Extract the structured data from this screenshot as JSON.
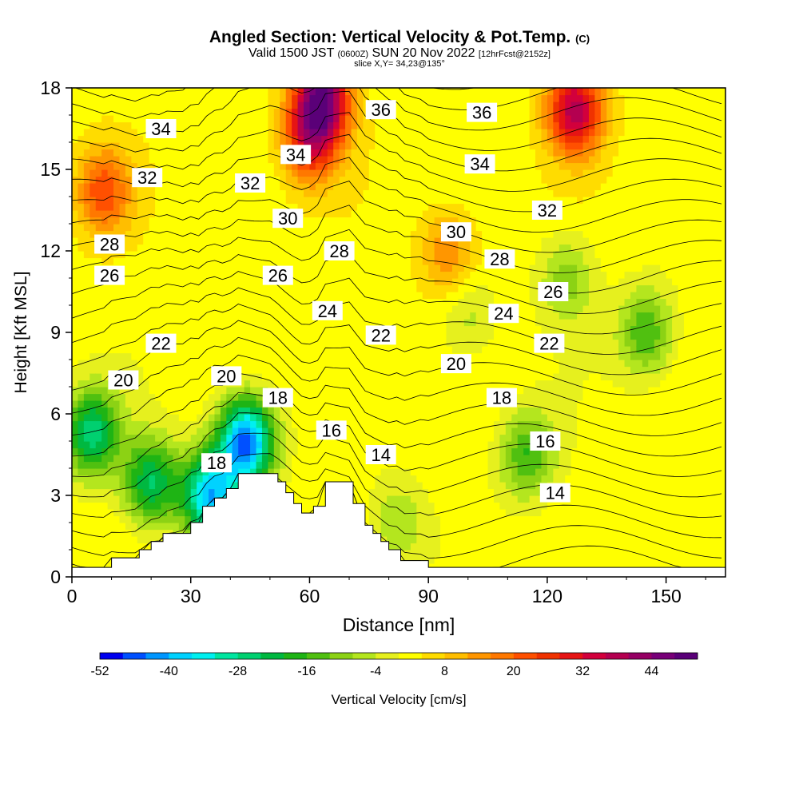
{
  "header": {
    "title_main": "Angled Section: Vertical Velocity & Pot.Temp.",
    "title_unit": "(C)",
    "valid_prefix": "Valid 1500 JST",
    "valid_z": "(0600Z)",
    "valid_date": "SUN 20 Nov 2022",
    "valid_fcst": "[12hrFcst@2152z]",
    "slice": "slice X,Y= 34,23@135°"
  },
  "colorbar": {
    "label": "Vertical Velocity [cm/s]",
    "tick_labels": [
      "-52",
      "-40",
      "-28",
      "-16",
      "-4",
      "8",
      "20",
      "32",
      "44"
    ],
    "colors": [
      "#0000f0",
      "#0050ff",
      "#0096ff",
      "#00d2ff",
      "#00f0f0",
      "#00e6a0",
      "#00d070",
      "#00b840",
      "#1eb414",
      "#50c010",
      "#8cd214",
      "#b4e61e",
      "#e6f01e",
      "#ffff00",
      "#ffdc00",
      "#ffbe00",
      "#ff9600",
      "#ff7800",
      "#ff5000",
      "#f03200",
      "#e61414",
      "#d2003c",
      "#b40050",
      "#960064",
      "#780078",
      "#5a0078"
    ]
  },
  "chart_data": {
    "type": "contour-cross-section",
    "xlabel": "Distance [nm]",
    "ylabel": "Height [Kft MSL]",
    "xlim": [
      0,
      165
    ],
    "ylim": [
      0,
      18
    ],
    "x_ticks": [
      0,
      30,
      60,
      90,
      120,
      150
    ],
    "y_ticks": [
      0,
      3,
      6,
      9,
      12,
      15,
      18
    ],
    "x_tick_labels": [
      "0",
      "30",
      "60",
      "90",
      "120",
      "150"
    ],
    "y_tick_labels": [
      "0",
      "3",
      "6",
      "9",
      "12",
      "15",
      "18"
    ],
    "fill_variable": "Vertical Velocity [cm/s]",
    "fill_range": [
      -52,
      48
    ],
    "fill_step": 4,
    "contour_variable": "Pot.Temp. (C)",
    "isotherm_range": [
      13,
      37
    ],
    "terrain": [
      [
        0,
        0.35
      ],
      [
        10,
        0.35
      ],
      [
        10,
        0.7
      ],
      [
        17,
        0.7
      ],
      [
        17,
        1.0
      ],
      [
        20,
        1.0
      ],
      [
        20,
        1.3
      ],
      [
        23,
        1.3
      ],
      [
        23,
        1.6
      ],
      [
        30,
        1.6
      ],
      [
        30,
        2.0
      ],
      [
        33,
        2.0
      ],
      [
        33,
        2.6
      ],
      [
        36,
        2.6
      ],
      [
        36,
        2.9
      ],
      [
        39,
        2.9
      ],
      [
        39,
        3.25
      ],
      [
        42,
        3.25
      ],
      [
        42,
        3.8
      ],
      [
        52,
        3.8
      ],
      [
        52,
        3.5
      ],
      [
        54,
        3.5
      ],
      [
        54,
        3.1
      ],
      [
        56,
        3.1
      ],
      [
        56,
        2.7
      ],
      [
        58,
        2.7
      ],
      [
        58,
        2.35
      ],
      [
        61,
        2.35
      ],
      [
        61,
        2.6
      ],
      [
        64,
        2.6
      ],
      [
        64,
        3.5
      ],
      [
        71,
        3.5
      ],
      [
        71,
        2.7
      ],
      [
        74,
        2.7
      ],
      [
        74,
        1.9
      ],
      [
        76,
        1.9
      ],
      [
        76,
        1.6
      ],
      [
        78,
        1.6
      ],
      [
        78,
        1.3
      ],
      [
        80,
        1.3
      ],
      [
        80,
        1.0
      ],
      [
        83,
        1.0
      ],
      [
        83,
        0.6
      ],
      [
        90,
        0.6
      ],
      [
        90,
        0.35
      ],
      [
        165,
        0.35
      ]
    ],
    "vv_features": [
      {
        "x": 5,
        "y": 5.3,
        "value": -28
      },
      {
        "x": 20,
        "y": 3.5,
        "value": -26
      },
      {
        "x": 44,
        "y": 5.0,
        "value": -48
      },
      {
        "x": 35,
        "y": 3.0,
        "value": -40
      },
      {
        "x": 63,
        "y": 17.6,
        "value": 44
      },
      {
        "x": 127,
        "y": 17.2,
        "value": 36
      },
      {
        "x": 8,
        "y": 14.2,
        "value": 20
      },
      {
        "x": 95,
        "y": 12.0,
        "value": 14
      },
      {
        "x": 125,
        "y": 11.0,
        "value": -12
      },
      {
        "x": 145,
        "y": 9.0,
        "value": -18
      },
      {
        "x": 115,
        "y": 4.5,
        "value": -18
      },
      {
        "x": 100,
        "y": 9.5,
        "value": -8
      },
      {
        "x": 82,
        "y": 2.0,
        "value": -10
      },
      {
        "x": 60,
        "y": 16.0,
        "value": 24
      }
    ],
    "contour_labels": [
      {
        "text": "34",
        "x": 22.5,
        "y": 16.5
      },
      {
        "text": "32",
        "x": 19.0,
        "y": 14.7
      },
      {
        "text": "28",
        "x": 9.5,
        "y": 12.25
      },
      {
        "text": "26",
        "x": 9.5,
        "y": 11.1
      },
      {
        "text": "22",
        "x": 22.5,
        "y": 8.6
      },
      {
        "text": "20",
        "x": 13.0,
        "y": 7.25
      },
      {
        "text": "36",
        "x": 78.0,
        "y": 17.2
      },
      {
        "text": "36",
        "x": 103.5,
        "y": 17.1
      },
      {
        "text": "34",
        "x": 56.5,
        "y": 15.55
      },
      {
        "text": "34",
        "x": 103.0,
        "y": 15.2
      },
      {
        "text": "32",
        "x": 45.0,
        "y": 14.5
      },
      {
        "text": "32",
        "x": 120.0,
        "y": 13.5
      },
      {
        "text": "30",
        "x": 54.5,
        "y": 13.2
      },
      {
        "text": "30",
        "x": 97.0,
        "y": 12.7
      },
      {
        "text": "28",
        "x": 67.5,
        "y": 12.0
      },
      {
        "text": "28",
        "x": 108.0,
        "y": 11.7
      },
      {
        "text": "26",
        "x": 52.0,
        "y": 11.1
      },
      {
        "text": "26",
        "x": 121.5,
        "y": 10.5
      },
      {
        "text": "24",
        "x": 64.5,
        "y": 9.8
      },
      {
        "text": "24",
        "x": 109.0,
        "y": 9.7
      },
      {
        "text": "22",
        "x": 78.0,
        "y": 8.9
      },
      {
        "text": "22",
        "x": 120.5,
        "y": 8.6
      },
      {
        "text": "20",
        "x": 39.0,
        "y": 7.4
      },
      {
        "text": "20",
        "x": 97.0,
        "y": 7.85
      },
      {
        "text": "18",
        "x": 52.0,
        "y": 6.6
      },
      {
        "text": "18",
        "x": 108.5,
        "y": 6.6
      },
      {
        "text": "18",
        "x": 36.5,
        "y": 4.2
      },
      {
        "text": "16",
        "x": 65.5,
        "y": 5.4
      },
      {
        "text": "16",
        "x": 119.5,
        "y": 5.0
      },
      {
        "text": "14",
        "x": 78.0,
        "y": 4.5
      },
      {
        "text": "14",
        "x": 122.0,
        "y": 3.1
      }
    ]
  }
}
